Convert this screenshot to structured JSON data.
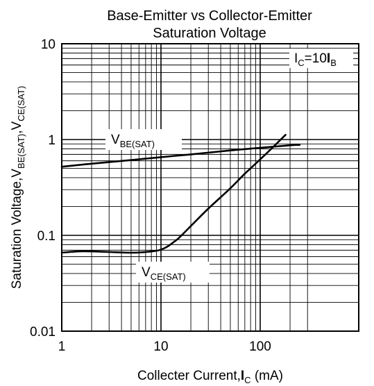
{
  "chart_data": {
    "type": "line",
    "title": [
      "Base-Emitter vs Collector-Emitter",
      "Saturation Voltage"
    ],
    "xlabel": {
      "main": "Collecter Current,",
      "I": "I",
      "sub": "C",
      "unit": " (mA)"
    },
    "ylabel": {
      "p1": "Saturation Voltage,",
      "v1": "V",
      "s1": "BE(SAT)",
      "sep": ",",
      "v2": "V",
      "s2": "CE(SAT)"
    },
    "x_scale": "log",
    "y_scale": "log",
    "xlim": [
      1,
      300
    ],
    "ylim": [
      0.01,
      10
    ],
    "x_ticks": [
      {
        "value": 1,
        "label": "1"
      },
      {
        "value": 10,
        "label": "10"
      },
      {
        "value": 100,
        "label": "100"
      }
    ],
    "y_ticks": [
      {
        "value": 10,
        "label": "10"
      },
      {
        "value": 1,
        "label": "1"
      },
      {
        "value": 0.1,
        "label": "0.1"
      },
      {
        "value": 0.01,
        "label": "0.01"
      }
    ],
    "grid": true,
    "series": [
      {
        "name": "V_BE(SAT)",
        "x": [
          1,
          2,
          5,
          10,
          20,
          50,
          100,
          200,
          250
        ],
        "y": [
          0.52,
          0.56,
          0.61,
          0.655,
          0.7,
          0.77,
          0.82,
          0.87,
          0.88
        ]
      },
      {
        "name": "V_CE(SAT)",
        "x": [
          1,
          1.5,
          2,
          3,
          5,
          7,
          9,
          10,
          11,
          12,
          13,
          15,
          20,
          30,
          50,
          70,
          100,
          150,
          180
        ],
        "y": [
          0.066,
          0.068,
          0.068,
          0.067,
          0.066,
          0.067,
          0.069,
          0.071,
          0.074,
          0.078,
          0.083,
          0.093,
          0.125,
          0.19,
          0.31,
          0.44,
          0.62,
          0.93,
          1.12
        ]
      }
    ],
    "annotations": {
      "condition": {
        "I1": "I",
        "s1": "C",
        "eq": "=10",
        "I2": "I",
        "s2": "B"
      },
      "vbe_label": {
        "v": "V",
        "sub": "BE(SAT)"
      },
      "vce_label": {
        "v": "V",
        "sub": "CE(SAT)"
      }
    }
  }
}
